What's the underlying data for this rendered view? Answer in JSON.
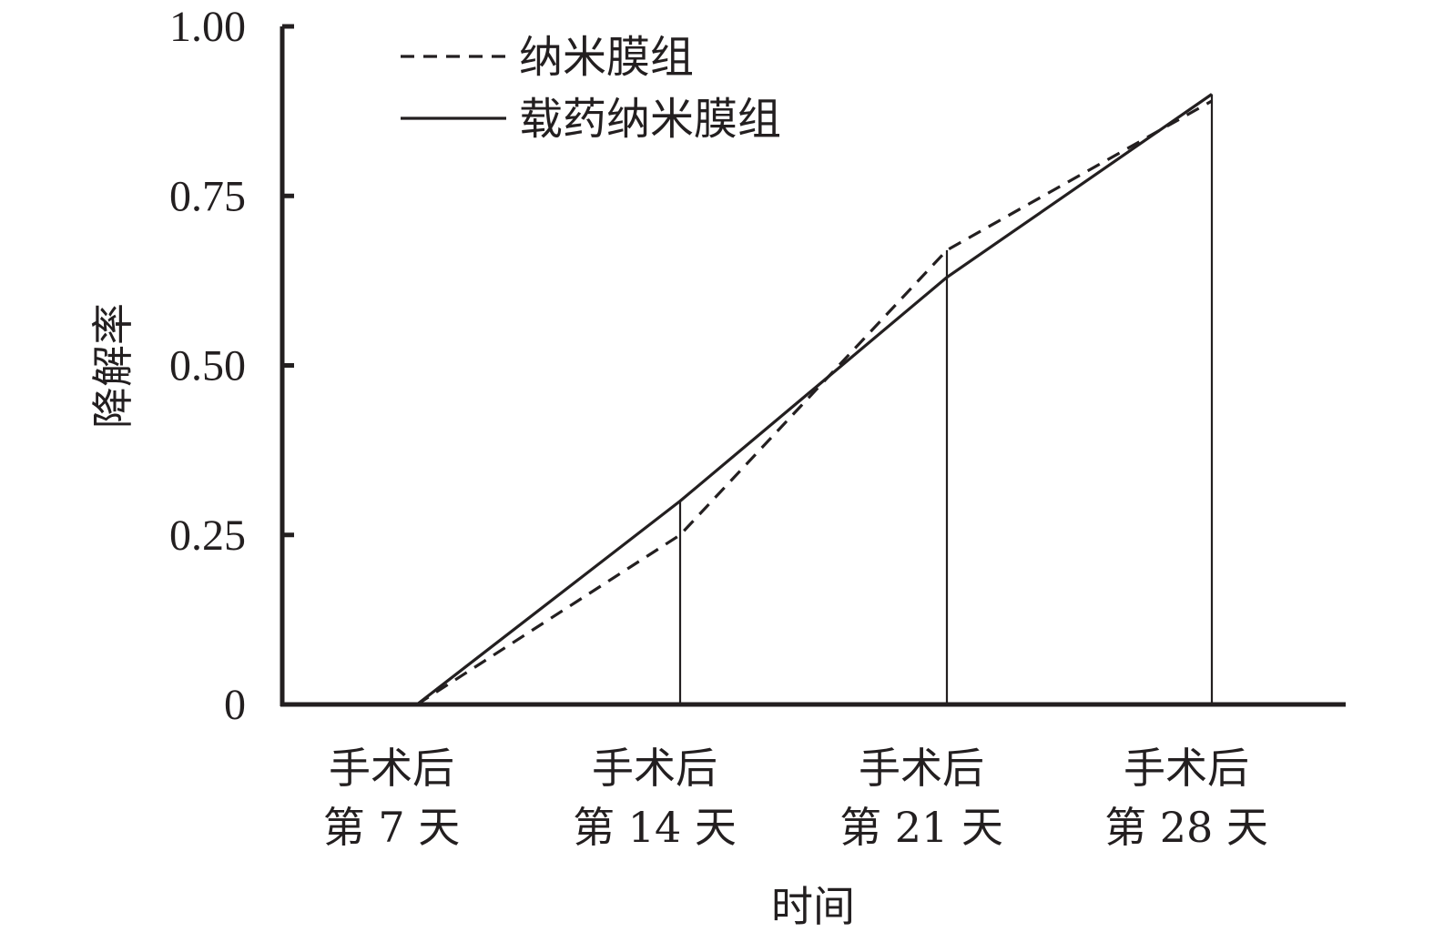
{
  "chart_data": {
    "type": "line",
    "ylabel": "降解率",
    "xlabel": "时间",
    "ylim": [
      0,
      1.0
    ],
    "yticks": [
      {
        "value": 0,
        "label": "0"
      },
      {
        "value": 0.25,
        "label": "0.25"
      },
      {
        "value": 0.5,
        "label": "0.50"
      },
      {
        "value": 0.75,
        "label": "0.75"
      },
      {
        "value": 1.0,
        "label": "1.00"
      }
    ],
    "categories": [
      {
        "line1": "手术后",
        "line2": "第 7 天"
      },
      {
        "line1": "手术后",
        "line2": "第 14 天"
      },
      {
        "line1": "手术后",
        "line2": "第 21 天"
      },
      {
        "line1": "手术后",
        "line2": "第 28 天"
      }
    ],
    "series": [
      {
        "name": "纳米膜组",
        "style": "dashed",
        "values": [
          0,
          0.25,
          0.67,
          0.89
        ]
      },
      {
        "name": "载药纳米膜组",
        "style": "solid",
        "values": [
          0,
          0.3,
          0.63,
          0.9
        ]
      }
    ],
    "drop_lines": true,
    "grid": false,
    "legend_position": "top-left",
    "colors": {
      "ink": "#231f20"
    }
  }
}
